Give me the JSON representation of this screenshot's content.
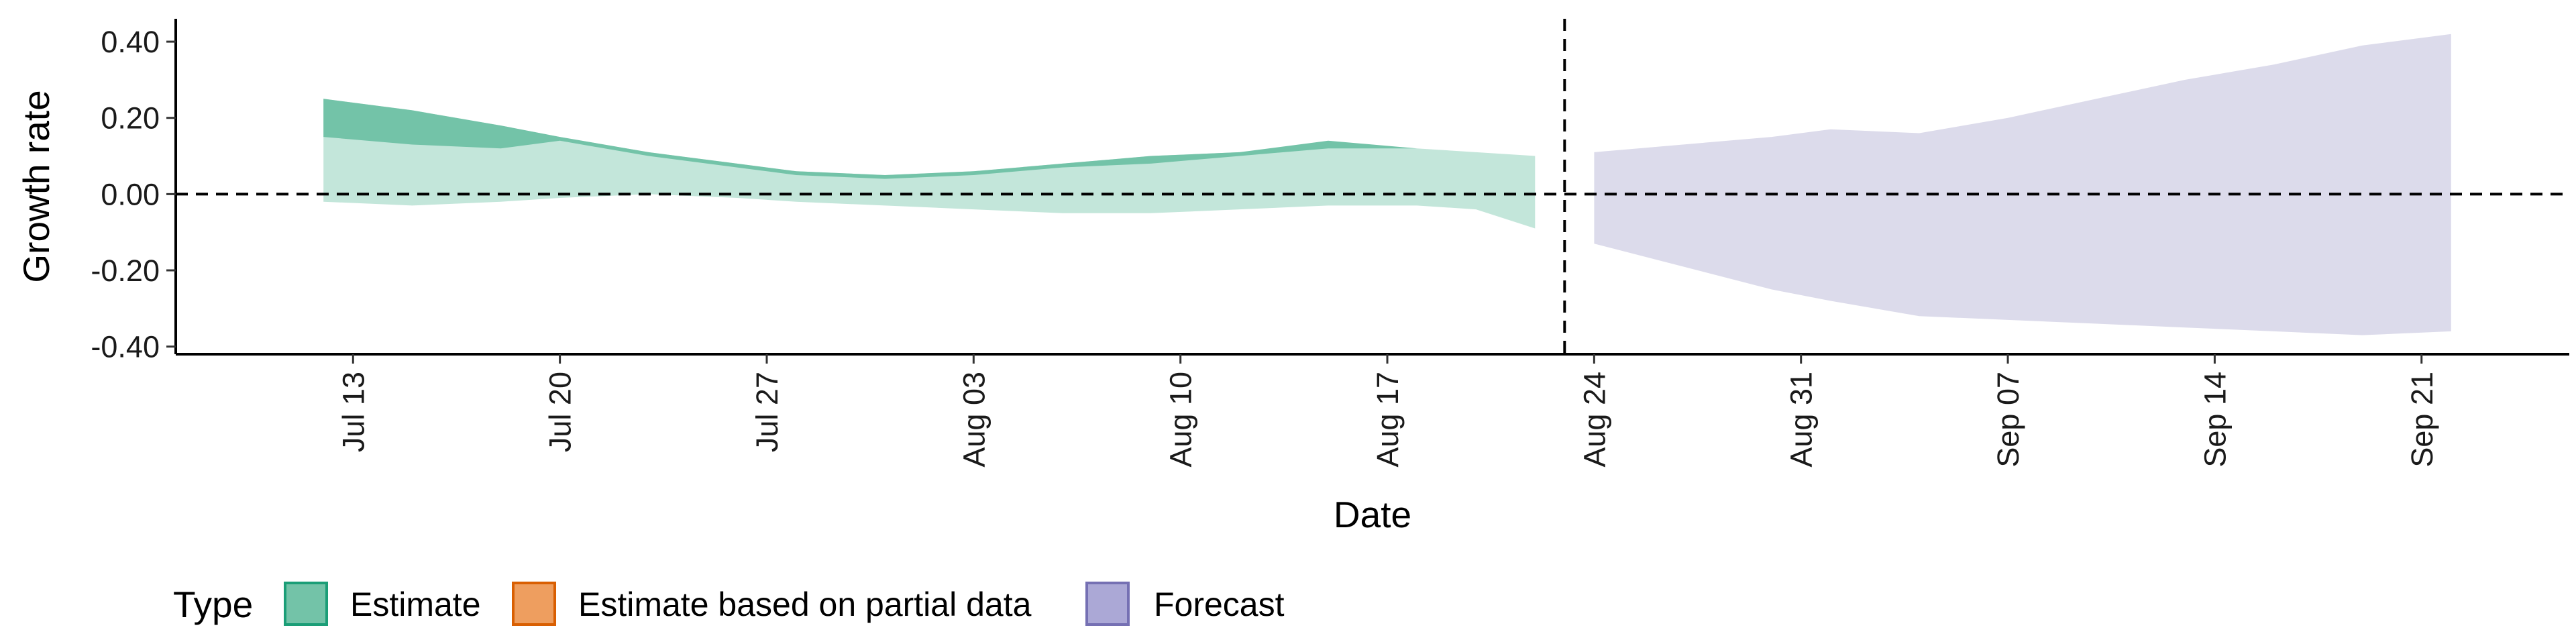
{
  "chart_data": {
    "type": "area",
    "title": "",
    "xlabel": "Date",
    "ylabel": "Growth rate",
    "ylim": [
      -0.42,
      0.46
    ],
    "y_ticks": [
      -0.4,
      -0.2,
      0.0,
      0.2,
      0.4
    ],
    "y_tick_labels": [
      "-0.40",
      "-0.20",
      "0.00",
      "0.20",
      "0.40"
    ],
    "x_range": [
      "2020-07-07",
      "2020-09-26"
    ],
    "x_ticks": [
      "2020-07-13",
      "2020-07-20",
      "2020-07-27",
      "2020-08-03",
      "2020-08-10",
      "2020-08-17",
      "2020-08-24",
      "2020-08-31",
      "2020-09-07",
      "2020-09-14",
      "2020-09-21"
    ],
    "x_tick_labels": [
      "Jul 13",
      "Jul 20",
      "Jul 27",
      "Aug 03",
      "Aug 10",
      "Aug 17",
      "Aug 24",
      "Aug 31",
      "Sep 07",
      "Sep 14",
      "Sep 21"
    ],
    "hline": 0.0,
    "vline": "2020-08-23",
    "grid": false,
    "legend": {
      "title": "Type",
      "position": "bottom-left",
      "entries": [
        {
          "label": "Estimate",
          "fill": "#73c3a8",
          "stroke": "#1b9e77"
        },
        {
          "label": "Estimate based on partial data",
          "fill": "#ee9e5f",
          "stroke": "#d95f02"
        },
        {
          "label": "Forecast",
          "fill": "#aba8d6",
          "stroke": "#7570b3"
        }
      ]
    },
    "series": [
      {
        "name": "Estimate",
        "role": "outer-interval",
        "fill": "#c3e6da",
        "x": [
          "2020-07-12",
          "2020-07-15",
          "2020-07-18",
          "2020-07-20",
          "2020-07-23",
          "2020-07-26",
          "2020-07-28",
          "2020-07-31",
          "2020-08-03",
          "2020-08-06",
          "2020-08-09",
          "2020-08-12",
          "2020-08-15",
          "2020-08-18",
          "2020-08-20",
          "2020-08-22"
        ],
        "upper": [
          0.25,
          0.22,
          0.18,
          0.15,
          0.11,
          0.08,
          0.06,
          0.05,
          0.06,
          0.08,
          0.1,
          0.11,
          0.13,
          0.12,
          0.11,
          0.1
        ],
        "lower": [
          -0.02,
          -0.03,
          -0.02,
          -0.01,
          0.0,
          -0.01,
          -0.02,
          -0.03,
          -0.04,
          -0.05,
          -0.05,
          -0.04,
          -0.03,
          -0.03,
          -0.04,
          -0.09
        ]
      },
      {
        "name": "Estimate",
        "role": "inner-interval",
        "fill": "#73c3a8",
        "x": [
          "2020-07-12",
          "2020-07-15",
          "2020-07-18",
          "2020-07-20",
          "2020-07-23",
          "2020-07-26",
          "2020-07-28",
          "2020-07-31",
          "2020-08-03",
          "2020-08-06",
          "2020-08-09",
          "2020-08-12",
          "2020-08-15",
          "2020-08-18",
          "2020-08-20",
          "2020-08-22"
        ],
        "upper": [
          0.25,
          0.22,
          0.18,
          0.15,
          0.11,
          0.08,
          0.06,
          0.05,
          0.06,
          0.08,
          0.1,
          0.11,
          0.14,
          0.12,
          0.11,
          0.1
        ],
        "lower": [
          0.15,
          0.13,
          0.12,
          0.14,
          0.1,
          0.07,
          0.05,
          0.04,
          0.05,
          0.07,
          0.08,
          0.1,
          0.12,
          0.12,
          0.11,
          0.1
        ]
      },
      {
        "name": "Forecast",
        "role": "interval",
        "fill": "#dcdbeb",
        "x": [
          "2020-08-24",
          "2020-08-27",
          "2020-08-30",
          "2020-09-01",
          "2020-09-04",
          "2020-09-07",
          "2020-09-10",
          "2020-09-13",
          "2020-09-16",
          "2020-09-19",
          "2020-09-22"
        ],
        "upper": [
          0.11,
          0.13,
          0.15,
          0.17,
          0.16,
          0.2,
          0.25,
          0.3,
          0.34,
          0.39,
          0.42
        ],
        "lower": [
          -0.13,
          -0.19,
          -0.25,
          -0.28,
          -0.32,
          -0.33,
          -0.34,
          -0.35,
          -0.36,
          -0.37,
          -0.36
        ]
      }
    ]
  }
}
